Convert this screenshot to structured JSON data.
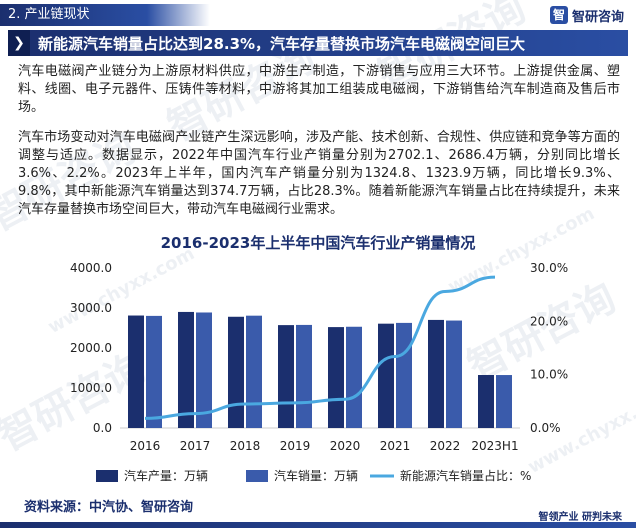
{
  "section": {
    "tag": "2. 产业链现状"
  },
  "brand": {
    "logo": "智",
    "name": "智研咨询",
    "footer": "智领产业  研判未来"
  },
  "headline": {
    "text": "新能源汽车销量占比达到28.3%，汽车存量替换市场汽车电磁阀空间巨大"
  },
  "paragraphs": {
    "p1": "汽车电磁阀产业链分为上游原材料供应，中游生产制造，下游销售与应用三大环节。上游提供金属、塑料、线圈、电子元器件、压铸件等材料，中游将其加工组装成电磁阀，下游销售给汽车制造商及售后市场。",
    "p2": "汽车市场变动对汽车电磁阀产业链产生深远影响，涉及产能、技术创新、合规性、供应链和竞争等方面的调整与适应。数据显示，2022年中国汽车行业产销量分别为2702.1、2686.4万辆，分别同比增长3.6%、2.2%。2023年上半年，国内汽车产销量分别为1324.8、1323.9万辆，同比增长9.3%、9.8%，其中新能源汽车销量达到374.7万辆，占比28.3%。随着新能源汽车销量占比在持续提升，未来汽车存量替换市场空间巨大，带动汽车电磁阀行业需求。"
  },
  "source": {
    "text": "资料来源：中汽协、智研咨询"
  },
  "watermark": {
    "text": "智研咨询",
    "url": "www.chyxx.com"
  },
  "colors": {
    "production": "#1b2f6e",
    "sales": "#3a5bab",
    "share_line": "#4aa8e0",
    "accent": "#1b2f6e"
  },
  "chart_data": {
    "type": "bar",
    "title": "2016-2023年上半年中国汽车行业产销量情况",
    "categories": [
      "2016",
      "2017",
      "2018",
      "2019",
      "2020",
      "2021",
      "2022",
      "2023H1"
    ],
    "series": [
      {
        "name": "汽车产量：万辆",
        "type": "bar",
        "axis": "left",
        "values": [
          2811.9,
          2901.5,
          2780.9,
          2572.1,
          2522.5,
          2608.2,
          2702.1,
          1324.8
        ]
      },
      {
        "name": "汽车销量：万辆",
        "type": "bar",
        "axis": "left",
        "values": [
          2802.8,
          2887.9,
          2808.1,
          2576.9,
          2531.1,
          2627.5,
          2686.4,
          1323.9
        ]
      },
      {
        "name": "新能源汽车销量占比：%",
        "type": "line",
        "axis": "right",
        "values": [
          1.8,
          2.7,
          4.5,
          4.7,
          5.4,
          13.4,
          25.6,
          28.3
        ]
      }
    ],
    "y_left": {
      "min": 0,
      "max": 4000,
      "ticks": [
        "0.0",
        "1000.0",
        "2000.0",
        "3000.0",
        "4000.0"
      ]
    },
    "y_right": {
      "min": 0,
      "max": 30,
      "ticks": [
        "0.0%",
        "10.0%",
        "20.0%",
        "30.0%"
      ]
    },
    "grid": false,
    "legend": "bottom"
  }
}
